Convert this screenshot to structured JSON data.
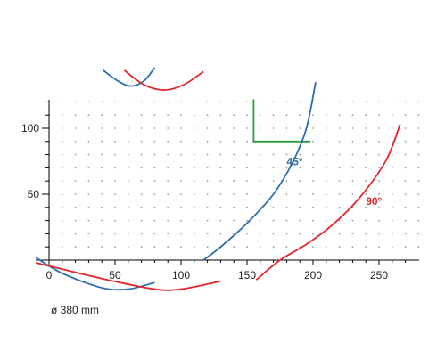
{
  "chart_data": {
    "type": "line",
    "xlim": [
      0,
      280
    ],
    "ylim": [
      0,
      120
    ],
    "grid": "dotted",
    "x_ticks": [
      0,
      50,
      100,
      150,
      200,
      250
    ],
    "y_ticks": [
      50,
      100
    ],
    "x_tick_labels": [
      "0",
      "50",
      "100",
      "150",
      "200",
      "250"
    ],
    "y_tick_labels": [
      "50",
      "100"
    ],
    "colors": {
      "blue": "#2a6db3",
      "red": "#e0262b",
      "green": "#2a9a3a",
      "grid": "#9a9a9a",
      "axis": "#000000"
    },
    "series": [
      {
        "name": "45°",
        "color": "#2a6db3",
        "x": [
          117,
          130,
          150,
          170,
          185,
          195,
          202
        ],
        "y": [
          0,
          10,
          28,
          50,
          75,
          100,
          135
        ]
      },
      {
        "name": "90°",
        "color": "#e0262b",
        "x": [
          157,
          175,
          195,
          215,
          235,
          255,
          266
        ],
        "y": [
          -15,
          0,
          12,
          27,
          47,
          75,
          103
        ]
      }
    ],
    "decorations": {
      "blue_arc_top": {
        "x": [
          41,
          52,
          62,
          72,
          80
        ],
        "y": [
          144,
          136,
          132,
          136,
          146
        ]
      },
      "red_arc_top": {
        "x": [
          57,
          72,
          87,
          102,
          117
        ],
        "y": [
          144,
          133,
          129,
          133,
          143
        ]
      },
      "blue_arc_bottom": {
        "x": [
          -10,
          10,
          40,
          60,
          80
        ],
        "y": [
          2,
          -10,
          -21,
          -22,
          -17
        ]
      },
      "red_arc_bottom": {
        "x": [
          -10,
          40,
          80,
          100,
          130
        ],
        "y": [
          -2,
          -14,
          -22,
          -22,
          -16
        ]
      },
      "green_angle": {
        "x": [
          155,
          155,
          198
        ],
        "y": [
          122,
          90,
          90
        ]
      }
    },
    "annotations": [
      {
        "text": "45°",
        "x": 180,
        "y": 72,
        "color": "#2a6db3"
      },
      {
        "text": "90°",
        "x": 240,
        "y": 42,
        "color": "#e0262b"
      }
    ],
    "footnote": "ø 380 mm"
  }
}
